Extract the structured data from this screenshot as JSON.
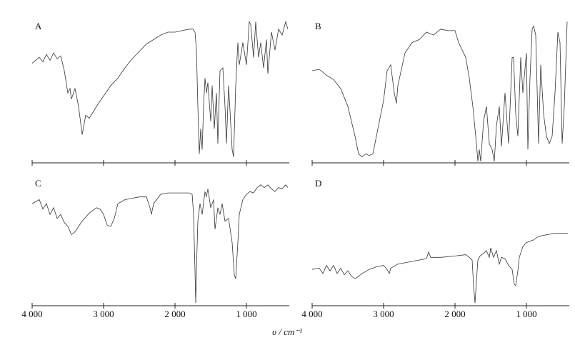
{
  "xlabel": "υ / cm⁻¹",
  "chart_data": [
    {
      "type": "line",
      "title": "A",
      "color": "#333333",
      "xlim": [
        4000,
        400
      ],
      "ylim": [
        0,
        100
      ],
      "xticks": [
        4000,
        3000,
        2000,
        1000
      ],
      "x": [
        4000,
        3900,
        3850,
        3800,
        3750,
        3700,
        3650,
        3600,
        3550,
        3500,
        3470,
        3450,
        3400,
        3350,
        3300,
        3250,
        3200,
        3100,
        3000,
        2900,
        2800,
        2700,
        2600,
        2500,
        2400,
        2300,
        2200,
        2100,
        2000,
        1900,
        1800,
        1750,
        1720,
        1700,
        1680,
        1660,
        1640,
        1620,
        1600,
        1580,
        1560,
        1540,
        1500,
        1480,
        1450,
        1420,
        1400,
        1370,
        1330,
        1300,
        1280,
        1250,
        1200,
        1180,
        1150,
        1120,
        1100,
        1050,
        1000,
        960,
        940,
        900,
        870,
        830,
        800,
        760,
        720,
        700,
        650,
        600,
        550,
        500,
        450,
        420
      ],
      "values": [
        67,
        71,
        68,
        73,
        69,
        74,
        70,
        72,
        62,
        47,
        50,
        43,
        50,
        38,
        19,
        32,
        30,
        38,
        45,
        52,
        57,
        64,
        70,
        75,
        80,
        83,
        86,
        88,
        88,
        89,
        90,
        90,
        88,
        76,
        38,
        6,
        23,
        9,
        38,
        57,
        47,
        54,
        28,
        52,
        23,
        47,
        13,
        62,
        64,
        38,
        13,
        52,
        9,
        4,
        52,
        81,
        66,
        81,
        66,
        95,
        93,
        71,
        95,
        71,
        81,
        64,
        83,
        60,
        88,
        76,
        90,
        86,
        95,
        90
      ]
    },
    {
      "type": "line",
      "title": "B",
      "color": "#333333",
      "xlim": [
        4000,
        400
      ],
      "ylim": [
        0,
        100
      ],
      "xticks": [
        4000,
        3000,
        2000,
        1000
      ],
      "x": [
        4000,
        3900,
        3800,
        3700,
        3600,
        3500,
        3400,
        3350,
        3300,
        3250,
        3200,
        3150,
        3100,
        3000,
        2950,
        2900,
        2850,
        2820,
        2800,
        2700,
        2600,
        2500,
        2400,
        2300,
        2200,
        2100,
        2000,
        1950,
        1900,
        1850,
        1800,
        1750,
        1700,
        1680,
        1660,
        1640,
        1600,
        1560,
        1520,
        1480,
        1450,
        1420,
        1380,
        1350,
        1300,
        1250,
        1200,
        1180,
        1150,
        1120,
        1080,
        1050,
        1000,
        980,
        950,
        920,
        900,
        870,
        830,
        800,
        760,
        720,
        680,
        640,
        600,
        560,
        530,
        500,
        470,
        430
      ],
      "values": [
        62,
        63,
        59,
        56,
        50,
        38,
        18,
        6,
        4,
        6,
        5,
        6,
        18,
        42,
        62,
        66,
        47,
        40,
        52,
        74,
        81,
        83,
        88,
        86,
        90,
        89,
        89,
        81,
        76,
        71,
        57,
        38,
        13,
        1,
        9,
        1,
        28,
        38,
        13,
        9,
        1,
        25,
        38,
        11,
        47,
        13,
        71,
        71,
        33,
        18,
        71,
        47,
        74,
        9,
        57,
        90,
        92,
        86,
        13,
        66,
        33,
        18,
        13,
        18,
        47,
        88,
        81,
        13,
        38,
        95
      ]
    },
    {
      "type": "line",
      "title": "C",
      "color": "#333333",
      "xlim": [
        4000,
        400
      ],
      "ylim": [
        0,
        100
      ],
      "xticks": [
        {
          "value": 4000,
          "label": "4 000"
        },
        {
          "value": 3000,
          "label": "3 000"
        },
        {
          "value": 2000,
          "label": "2 000"
        },
        {
          "value": 1000,
          "label": "1 000"
        }
      ],
      "x": [
        4000,
        3900,
        3850,
        3800,
        3750,
        3700,
        3650,
        3600,
        3550,
        3500,
        3450,
        3400,
        3300,
        3200,
        3100,
        3050,
        3000,
        2950,
        2900,
        2850,
        2800,
        2700,
        2600,
        2500,
        2400,
        2350,
        2330,
        2300,
        2200,
        2100,
        2000,
        1900,
        1800,
        1760,
        1740,
        1720,
        1710,
        1700,
        1680,
        1650,
        1620,
        1580,
        1560,
        1540,
        1500,
        1460,
        1440,
        1400,
        1370,
        1340,
        1300,
        1250,
        1200,
        1170,
        1150,
        1120,
        1100,
        1050,
        1000,
        950,
        900,
        850,
        800,
        750,
        700,
        650,
        600,
        550,
        500,
        450,
        420
      ],
      "values": [
        76,
        79,
        72,
        76,
        68,
        73,
        65,
        68,
        62,
        59,
        53,
        55,
        63,
        69,
        73,
        72,
        68,
        60,
        59,
        65,
        76,
        79,
        80,
        81,
        81,
        73,
        68,
        76,
        83,
        84,
        84,
        84,
        84,
        83,
        68,
        26,
        2,
        26,
        63,
        76,
        68,
        85,
        81,
        87,
        73,
        79,
        57,
        73,
        68,
        76,
        63,
        65,
        47,
        23,
        20,
        47,
        68,
        79,
        83,
        85,
        84,
        88,
        90,
        88,
        90,
        87,
        85,
        88,
        87,
        90,
        88
      ]
    },
    {
      "type": "line",
      "title": "D",
      "color": "#333333",
      "xlim": [
        4000,
        400
      ],
      "ylim": [
        0,
        100
      ],
      "xticks": [
        {
          "value": 4000,
          "label": "4 000"
        },
        {
          "value": 3000,
          "label": "3 000"
        },
        {
          "value": 2000,
          "label": "2 000"
        },
        {
          "value": 1000,
          "label": "1 000"
        }
      ],
      "x": [
        4000,
        3900,
        3850,
        3800,
        3750,
        3700,
        3650,
        3600,
        3550,
        3500,
        3450,
        3400,
        3300,
        3200,
        3100,
        3000,
        2950,
        2920,
        2900,
        2800,
        2600,
        2400,
        2370,
        2340,
        2200,
        2000,
        1850,
        1800,
        1760,
        1740,
        1720,
        1700,
        1680,
        1650,
        1600,
        1560,
        1520,
        1500,
        1460,
        1420,
        1380,
        1350,
        1300,
        1250,
        1200,
        1170,
        1150,
        1120,
        1100,
        1050,
        1000,
        950,
        900,
        850,
        800,
        700,
        600,
        500,
        420
      ],
      "values": [
        27,
        28,
        24,
        30,
        26,
        30,
        24,
        28,
        23,
        26,
        22,
        20,
        24,
        27,
        29,
        30,
        27,
        24,
        28,
        31,
        33,
        35,
        40,
        36,
        36,
        37,
        38,
        36,
        34,
        15,
        2,
        18,
        34,
        37,
        39,
        41,
        36,
        43,
        36,
        41,
        31,
        36,
        35,
        30,
        27,
        16,
        15,
        26,
        36,
        44,
        47,
        48,
        49,
        51,
        52,
        53,
        54,
        54,
        54
      ]
    }
  ]
}
